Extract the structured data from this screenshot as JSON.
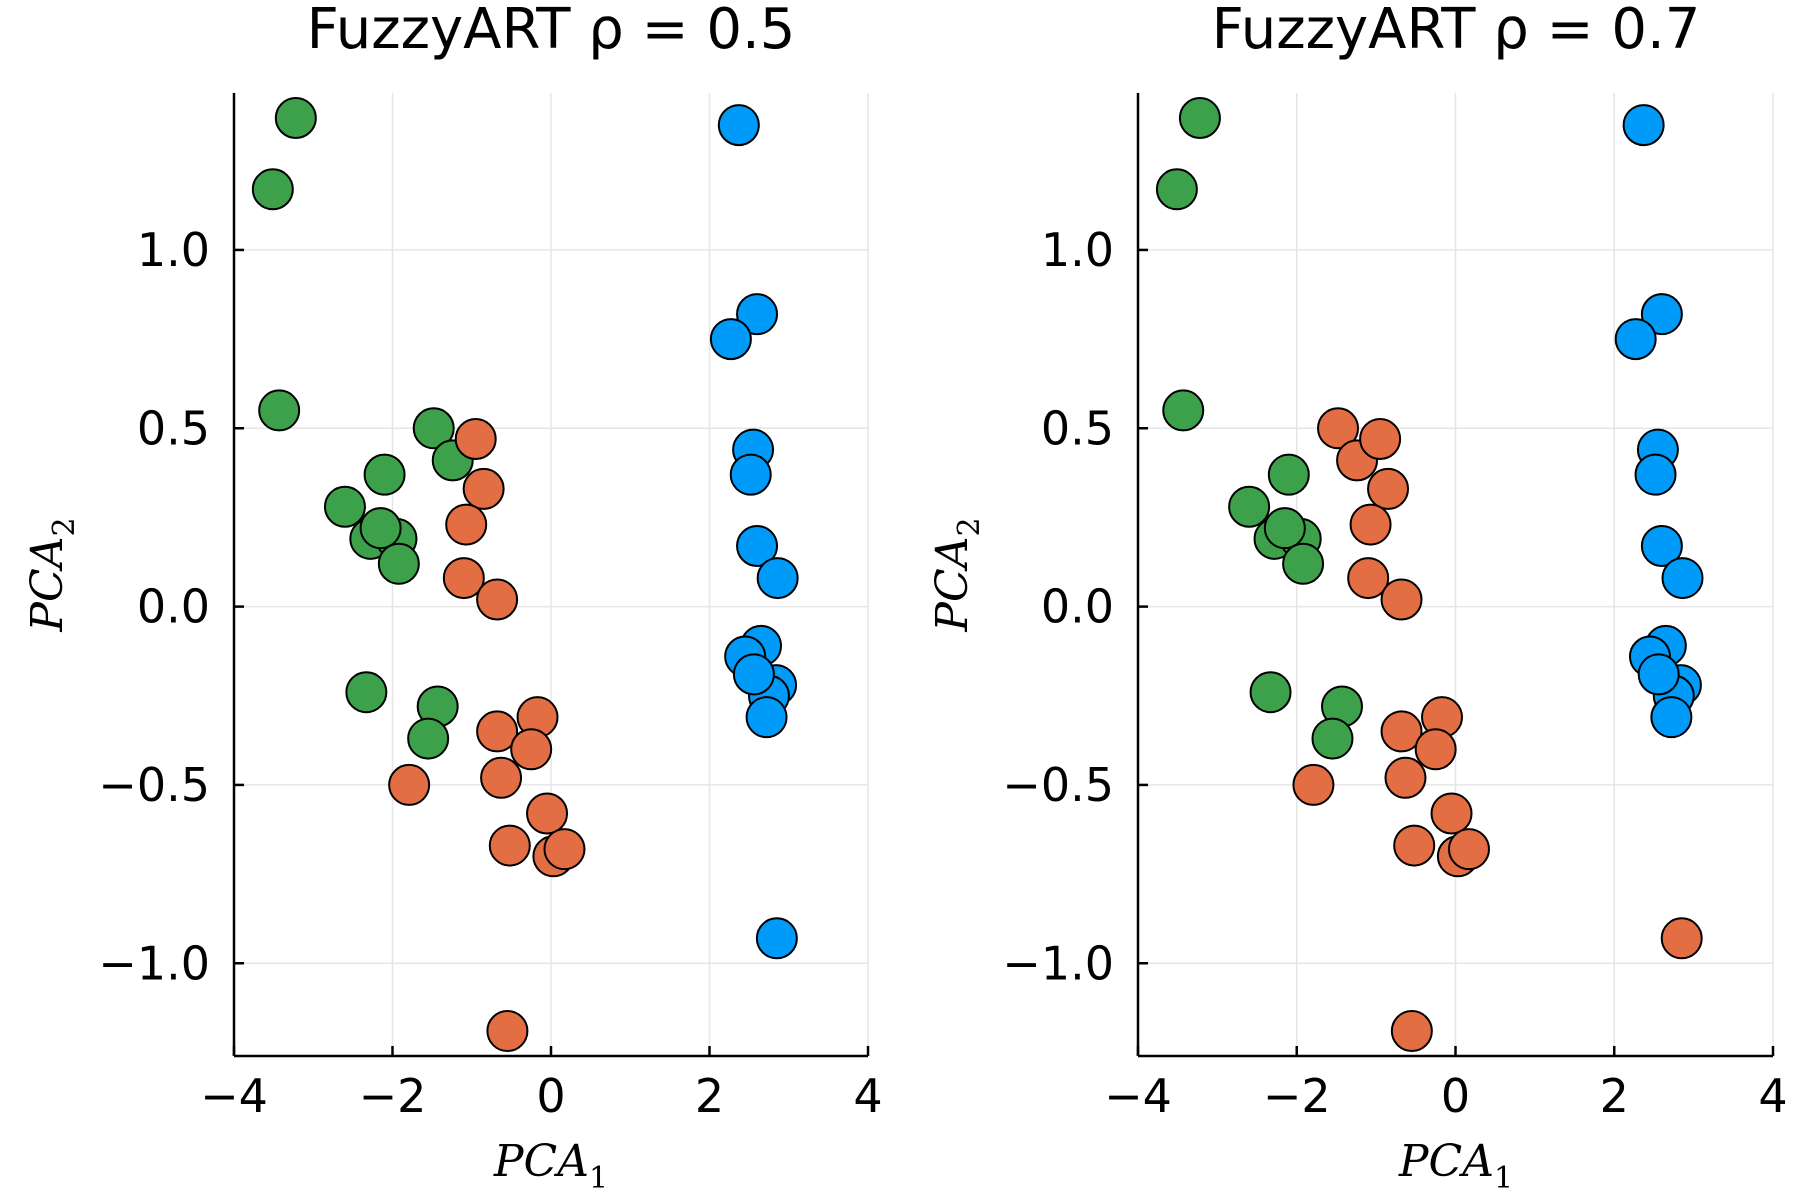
{
  "chart_data": [
    {
      "type": "scatter",
      "title": "FuzzyART ρ = 0.5",
      "xlabel": "PCA",
      "xlabel_sub": "1",
      "ylabel": "PCA",
      "ylabel_sub": "2",
      "xlim": [
        -4,
        4
      ],
      "ylim": [
        -1.26,
        1.44
      ],
      "xticks": [
        -4,
        -2,
        0,
        2,
        4
      ],
      "xtick_labels": [
        "−4",
        "−2",
        "0",
        "2",
        "4"
      ],
      "yticks": [
        -1.0,
        -0.5,
        0.0,
        0.5,
        1.0
      ],
      "ytick_labels": [
        "−1.0",
        "−0.5",
        "0.0",
        "0.5",
        "1.0"
      ],
      "grid": true,
      "legend": "none",
      "series": [
        {
          "color": "#3da04a",
          "points": [
            [
              -3.22,
              1.37
            ],
            [
              -3.51,
              1.17
            ],
            [
              -3.43,
              0.55
            ],
            [
              -1.48,
              0.5
            ],
            [
              -1.24,
              0.41
            ],
            [
              -2.1,
              0.37
            ],
            [
              -2.6,
              0.28
            ],
            [
              -2.28,
              0.19
            ],
            [
              -1.95,
              0.19
            ],
            [
              -2.15,
              0.22
            ],
            [
              -1.92,
              0.12
            ],
            [
              -2.33,
              -0.24
            ],
            [
              -1.43,
              -0.28
            ],
            [
              -1.55,
              -0.37
            ]
          ]
        },
        {
          "color": "#e36e44",
          "points": [
            [
              -0.95,
              0.47
            ],
            [
              -0.85,
              0.33
            ],
            [
              -1.07,
              0.23
            ],
            [
              -1.1,
              0.08
            ],
            [
              -0.68,
              0.02
            ],
            [
              -0.17,
              -0.31
            ],
            [
              -0.68,
              -0.35
            ],
            [
              -0.25,
              -0.4
            ],
            [
              -0.63,
              -0.48
            ],
            [
              -1.79,
              -0.5
            ],
            [
              -0.05,
              -0.58
            ],
            [
              -0.52,
              -0.67
            ],
            [
              0.03,
              -0.7
            ],
            [
              0.17,
              -0.68
            ],
            [
              -0.55,
              -1.19
            ]
          ]
        },
        {
          "color": "#009af9",
          "points": [
            [
              2.37,
              1.35
            ],
            [
              2.6,
              0.82
            ],
            [
              2.27,
              0.75
            ],
            [
              2.55,
              0.44
            ],
            [
              2.52,
              0.37
            ],
            [
              2.6,
              0.17
            ],
            [
              2.86,
              0.08
            ],
            [
              2.65,
              -0.11
            ],
            [
              2.45,
              -0.14
            ],
            [
              2.84,
              -0.22
            ],
            [
              2.75,
              -0.25
            ],
            [
              2.72,
              -0.31
            ],
            [
              2.56,
              -0.19
            ],
            [
              2.85,
              -0.93
            ]
          ]
        }
      ]
    },
    {
      "type": "scatter",
      "title": "FuzzyART ρ = 0.7",
      "xlabel": "PCA",
      "xlabel_sub": "1",
      "ylabel": "PCA",
      "ylabel_sub": "2",
      "xlim": [
        -4,
        4
      ],
      "ylim": [
        -1.26,
        1.44
      ],
      "xticks": [
        -4,
        -2,
        0,
        2,
        4
      ],
      "xtick_labels": [
        "−4",
        "−2",
        "0",
        "2",
        "4"
      ],
      "yticks": [
        -1.0,
        -0.5,
        0.0,
        0.5,
        1.0
      ],
      "ytick_labels": [
        "−1.0",
        "−0.5",
        "0.0",
        "0.5",
        "1.0"
      ],
      "grid": true,
      "legend": "none",
      "series": [
        {
          "color": "#3da04a",
          "points": [
            [
              -3.22,
              1.37
            ],
            [
              -3.51,
              1.17
            ],
            [
              -3.43,
              0.55
            ],
            [
              -2.1,
              0.37
            ],
            [
              -2.6,
              0.28
            ],
            [
              -2.28,
              0.19
            ],
            [
              -1.95,
              0.19
            ],
            [
              -2.15,
              0.22
            ],
            [
              -1.92,
              0.12
            ],
            [
              -2.33,
              -0.24
            ],
            [
              -1.43,
              -0.28
            ],
            [
              -1.55,
              -0.37
            ]
          ]
        },
        {
          "color": "#e36e44",
          "points": [
            [
              -1.48,
              0.5
            ],
            [
              -1.24,
              0.41
            ],
            [
              -0.95,
              0.47
            ],
            [
              -0.85,
              0.33
            ],
            [
              -1.07,
              0.23
            ],
            [
              -1.1,
              0.08
            ],
            [
              -0.68,
              0.02
            ],
            [
              -0.17,
              -0.31
            ],
            [
              -0.68,
              -0.35
            ],
            [
              -0.25,
              -0.4
            ],
            [
              -0.63,
              -0.48
            ],
            [
              -1.79,
              -0.5
            ],
            [
              -0.05,
              -0.58
            ],
            [
              -0.52,
              -0.67
            ],
            [
              0.03,
              -0.7
            ],
            [
              0.17,
              -0.68
            ],
            [
              -0.55,
              -1.19
            ],
            [
              2.85,
              -0.93
            ]
          ]
        },
        {
          "color": "#009af9",
          "points": [
            [
              2.37,
              1.35
            ],
            [
              2.6,
              0.82
            ],
            [
              2.27,
              0.75
            ],
            [
              2.55,
              0.44
            ],
            [
              2.52,
              0.37
            ],
            [
              2.6,
              0.17
            ],
            [
              2.86,
              0.08
            ],
            [
              2.65,
              -0.11
            ],
            [
              2.45,
              -0.14
            ],
            [
              2.84,
              -0.22
            ],
            [
              2.75,
              -0.25
            ],
            [
              2.72,
              -0.31
            ],
            [
              2.56,
              -0.19
            ]
          ]
        }
      ]
    }
  ]
}
